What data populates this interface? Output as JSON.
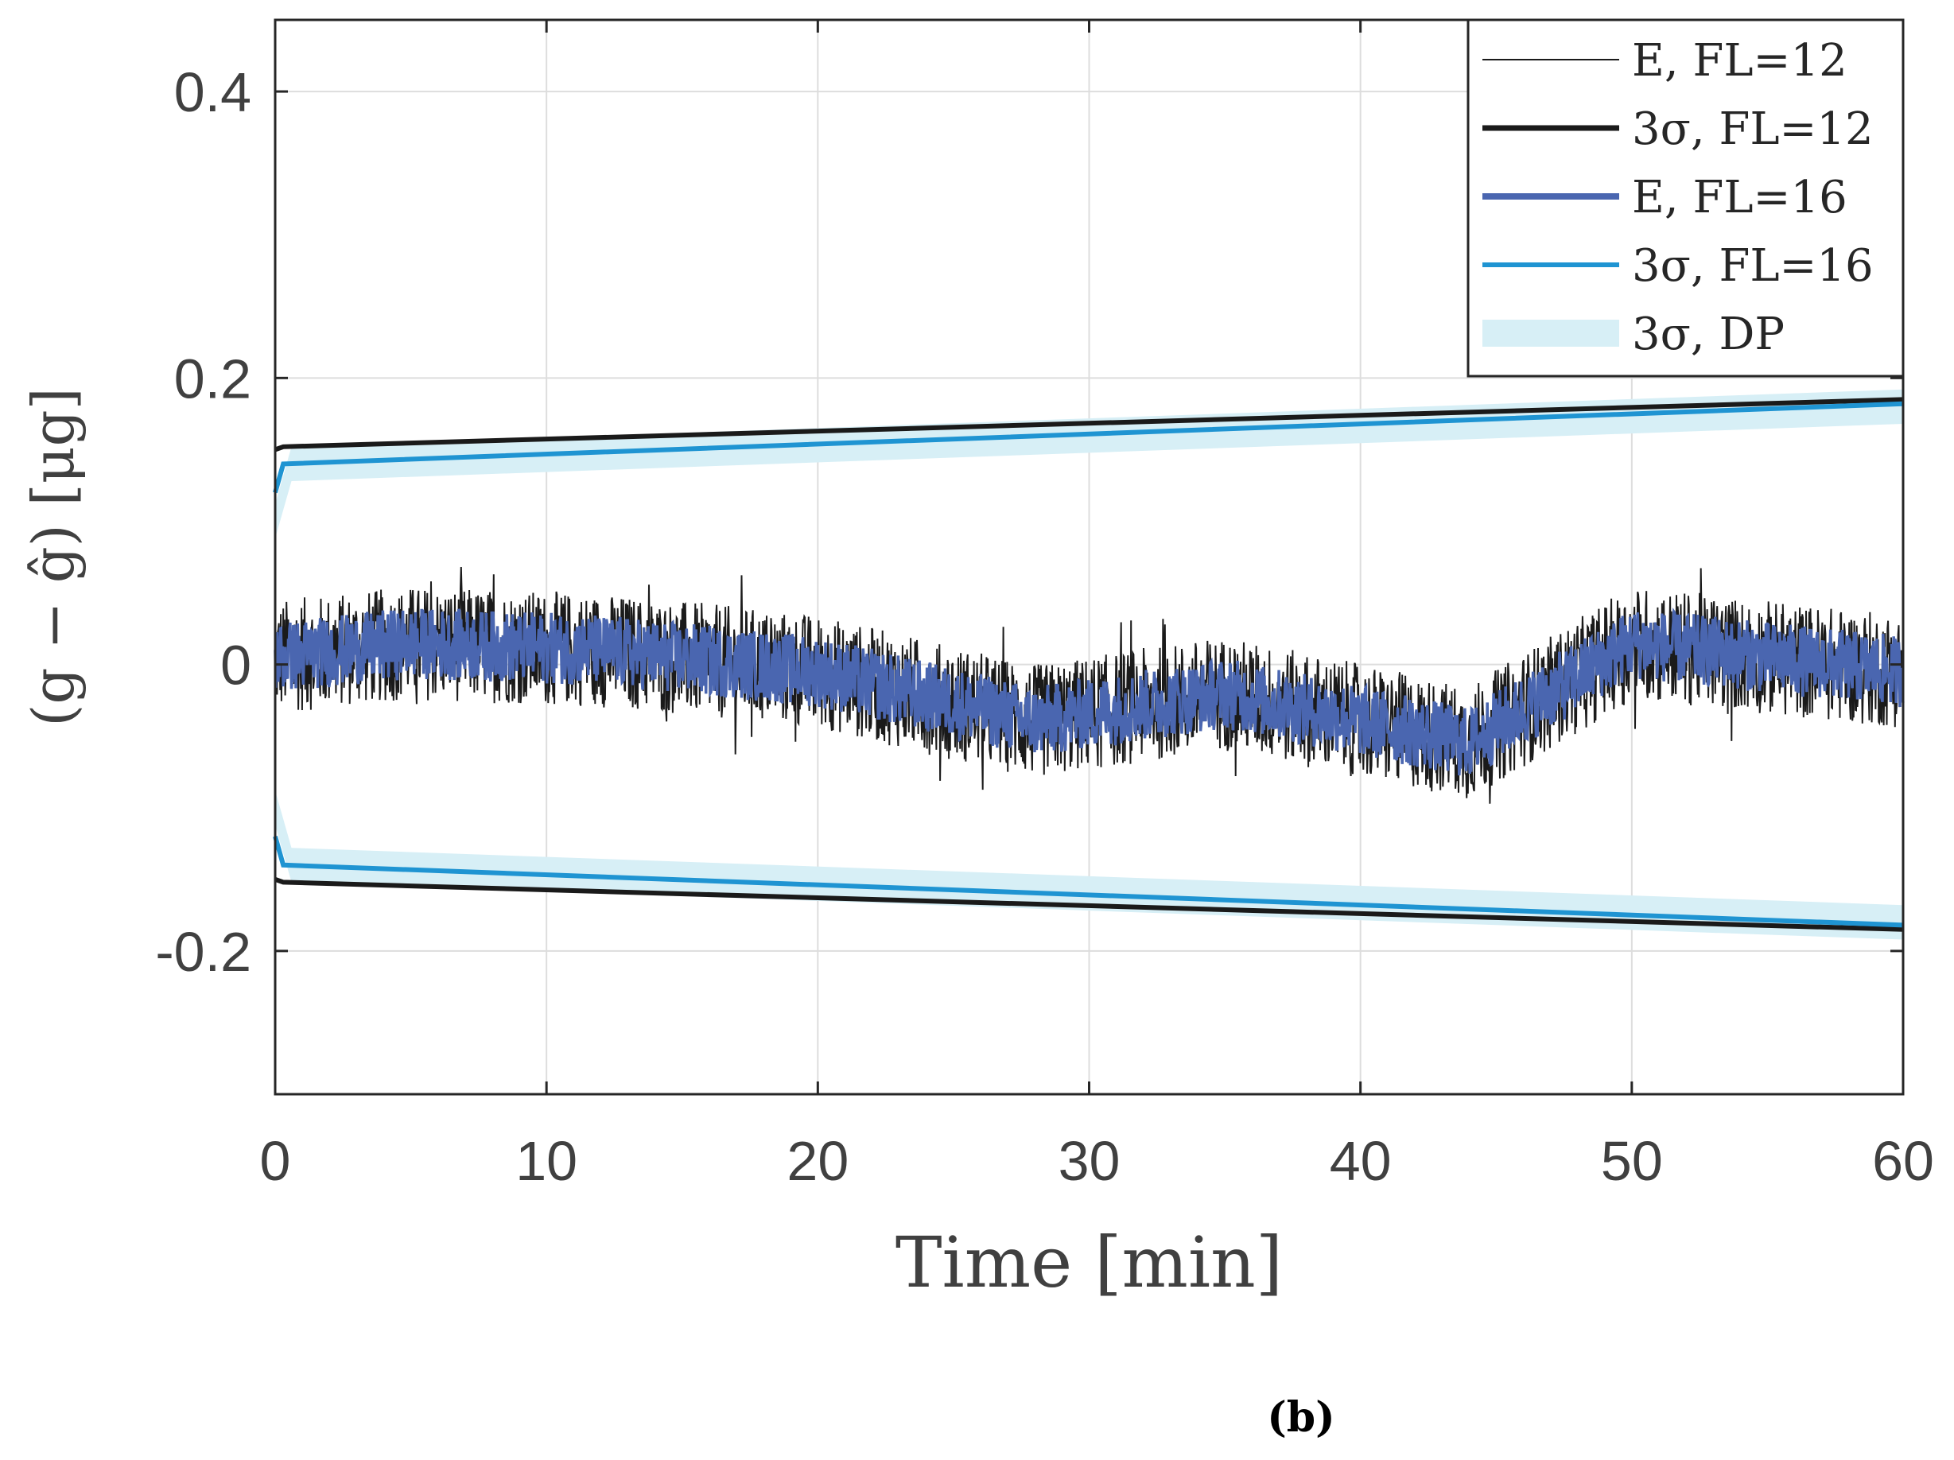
{
  "chart_data": {
    "type": "line",
    "title": "",
    "xlabel": "Time [min]",
    "ylabel": "(g − ĝ) [μg]",
    "xlim": [
      0,
      60
    ],
    "ylim": [
      -0.3,
      0.45
    ],
    "xticks": [
      0,
      10,
      20,
      30,
      40,
      50,
      60
    ],
    "xtick_labels": [
      "0",
      "10",
      "20",
      "30",
      "40",
      "50",
      "60"
    ],
    "yticks": [
      -0.2,
      0,
      0.2,
      0.4
    ],
    "ytick_labels": [
      "-0.2",
      "0",
      "0.2",
      "0.4"
    ],
    "grid": true,
    "legend_position": "top-right",
    "panel_label": "(b)",
    "colors": {
      "fl12": "#1a1a1a",
      "fl16_mean": "#4a66b0",
      "fl16_3sigma": "#1f94d2",
      "dp_band": "#d7eff6",
      "grid": "#dddddd",
      "axis": "#262626"
    },
    "series": [
      {
        "name": "E, FL=12",
        "legend_label": "E, FL=12",
        "kind": "noise",
        "trend": {
          "x": [
            0,
            5,
            12,
            20,
            28,
            35,
            44,
            50,
            55,
            60
          ],
          "y": [
            0.005,
            0.015,
            0.01,
            -0.005,
            -0.04,
            -0.02,
            -0.055,
            0.015,
            0.005,
            -0.005
          ]
        },
        "amplitude": 0.04
      },
      {
        "name": "3σ, FL=12",
        "legend_label": "3σ, FL=12",
        "kind": "bound",
        "x": [
          0,
          0.3,
          60
        ],
        "y": [
          0.15,
          0.152,
          0.185
        ]
      },
      {
        "name": "E, FL=16",
        "legend_label": "E, FL=16",
        "kind": "noise",
        "trend": {
          "x": [
            0,
            5,
            12,
            20,
            28,
            35,
            44,
            50,
            55,
            60
          ],
          "y": [
            0.005,
            0.015,
            0.01,
            -0.005,
            -0.04,
            -0.02,
            -0.055,
            0.015,
            0.005,
            -0.005
          ]
        },
        "amplitude": 0.025
      },
      {
        "name": "3σ, FL=16",
        "legend_label": "3σ, FL=16",
        "kind": "bound",
        "x": [
          0,
          0.3,
          60
        ],
        "y": [
          0.12,
          0.14,
          0.182
        ]
      },
      {
        "name": "3σ, DP",
        "legend_label": "3σ, DP",
        "kind": "band",
        "x": [
          0,
          0.6,
          60
        ],
        "y": [
          0.1,
          0.14,
          0.18
        ]
      }
    ]
  }
}
